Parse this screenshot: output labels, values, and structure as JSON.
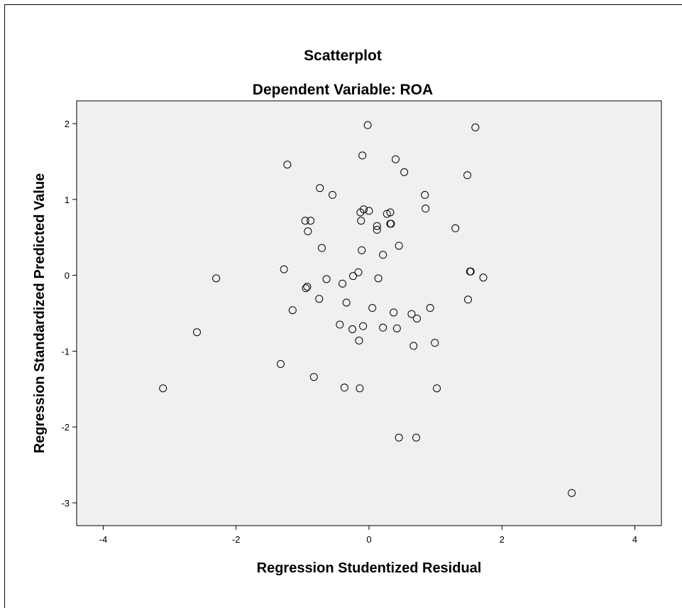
{
  "chart_data": {
    "type": "scatter",
    "title": "Scatterplot",
    "subtitle": "Dependent Variable: ROA",
    "xlabel": "Regression Studentized Residual",
    "ylabel": "Regression Standardized Predicted Value",
    "xlim": [
      -4.4,
      4.4
    ],
    "ylim": [
      -3.3,
      2.3
    ],
    "xticks": [
      -4,
      -2,
      0,
      2,
      4
    ],
    "yticks": [
      2,
      1,
      0,
      -1,
      -2,
      -3
    ],
    "xtick_labels": [
      "-4",
      "-2",
      "0",
      "2",
      "4"
    ],
    "ytick_labels": [
      "2",
      "1",
      "0",
      "-1",
      "-2",
      "-3"
    ],
    "grid": false,
    "background": "#f0f0f0",
    "marker": "open-circle",
    "points": [
      {
        "x": -0.02,
        "y": 1.98
      },
      {
        "x": 1.6,
        "y": 1.95
      },
      {
        "x": -0.1,
        "y": 1.58
      },
      {
        "x": 0.4,
        "y": 1.53
      },
      {
        "x": -1.23,
        "y": 1.46
      },
      {
        "x": 0.53,
        "y": 1.36
      },
      {
        "x": 1.48,
        "y": 1.32
      },
      {
        "x": -0.74,
        "y": 1.15
      },
      {
        "x": -0.55,
        "y": 1.06
      },
      {
        "x": 0.84,
        "y": 1.06
      },
      {
        "x": 0.85,
        "y": 0.88
      },
      {
        "x": -0.08,
        "y": 0.87
      },
      {
        "x": 0.0,
        "y": 0.85
      },
      {
        "x": -0.13,
        "y": 0.83
      },
      {
        "x": 0.32,
        "y": 0.83
      },
      {
        "x": 0.27,
        "y": 0.81
      },
      {
        "x": -0.96,
        "y": 0.72
      },
      {
        "x": -0.88,
        "y": 0.72
      },
      {
        "x": -0.12,
        "y": 0.72
      },
      {
        "x": 0.32,
        "y": 0.68
      },
      {
        "x": 0.33,
        "y": 0.68
      },
      {
        "x": 0.12,
        "y": 0.65
      },
      {
        "x": 1.3,
        "y": 0.62
      },
      {
        "x": 0.12,
        "y": 0.6
      },
      {
        "x": -0.92,
        "y": 0.58
      },
      {
        "x": 0.45,
        "y": 0.39
      },
      {
        "x": -0.71,
        "y": 0.36
      },
      {
        "x": -0.11,
        "y": 0.33
      },
      {
        "x": 0.21,
        "y": 0.27
      },
      {
        "x": -1.28,
        "y": 0.08
      },
      {
        "x": 1.52,
        "y": 0.05
      },
      {
        "x": 1.53,
        "y": 0.05
      },
      {
        "x": -0.16,
        "y": 0.04
      },
      {
        "x": -0.24,
        "y": -0.01
      },
      {
        "x": -2.3,
        "y": -0.04
      },
      {
        "x": -0.64,
        "y": -0.05
      },
      {
        "x": 0.14,
        "y": -0.04
      },
      {
        "x": 1.72,
        "y": -0.03
      },
      {
        "x": -0.4,
        "y": -0.11
      },
      {
        "x": -0.93,
        "y": -0.15
      },
      {
        "x": -0.95,
        "y": -0.17
      },
      {
        "x": -0.75,
        "y": -0.31
      },
      {
        "x": 1.49,
        "y": -0.32
      },
      {
        "x": -0.34,
        "y": -0.36
      },
      {
        "x": 0.05,
        "y": -0.43
      },
      {
        "x": 0.92,
        "y": -0.43
      },
      {
        "x": -1.15,
        "y": -0.46
      },
      {
        "x": 0.37,
        "y": -0.49
      },
      {
        "x": 0.64,
        "y": -0.51
      },
      {
        "x": 0.72,
        "y": -0.57
      },
      {
        "x": -0.44,
        "y": -0.65
      },
      {
        "x": -0.09,
        "y": -0.67
      },
      {
        "x": -0.25,
        "y": -0.71
      },
      {
        "x": 0.21,
        "y": -0.69
      },
      {
        "x": 0.42,
        "y": -0.7
      },
      {
        "x": -2.59,
        "y": -0.75
      },
      {
        "x": -0.15,
        "y": -0.86
      },
      {
        "x": 0.99,
        "y": -0.89
      },
      {
        "x": 0.67,
        "y": -0.93
      },
      {
        "x": -1.33,
        "y": -1.17
      },
      {
        "x": -0.83,
        "y": -1.34
      },
      {
        "x": -3.1,
        "y": -1.49
      },
      {
        "x": -0.37,
        "y": -1.48
      },
      {
        "x": -0.14,
        "y": -1.49
      },
      {
        "x": 1.02,
        "y": -1.49
      },
      {
        "x": 0.45,
        "y": -2.14
      },
      {
        "x": 0.71,
        "y": -2.14
      },
      {
        "x": 3.05,
        "y": -2.87
      }
    ]
  }
}
